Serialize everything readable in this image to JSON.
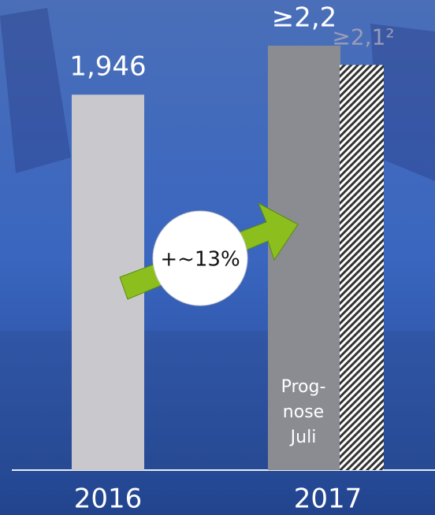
{
  "chart_data": {
    "type": "bar",
    "categories": [
      "2016",
      "2017"
    ],
    "values": [
      1.946,
      2.2
    ],
    "value_labels": [
      "1,946",
      "≥2,2"
    ],
    "colors": [
      "#c9c9cd",
      "#8a8c92"
    ],
    "forecast": {
      "value": 2.1,
      "value_label": "≥2,1²",
      "color": "#9a9cb8"
    },
    "annotation": "+~13%",
    "bar_note": [
      "Prog-",
      "nose",
      "Juli"
    ]
  }
}
